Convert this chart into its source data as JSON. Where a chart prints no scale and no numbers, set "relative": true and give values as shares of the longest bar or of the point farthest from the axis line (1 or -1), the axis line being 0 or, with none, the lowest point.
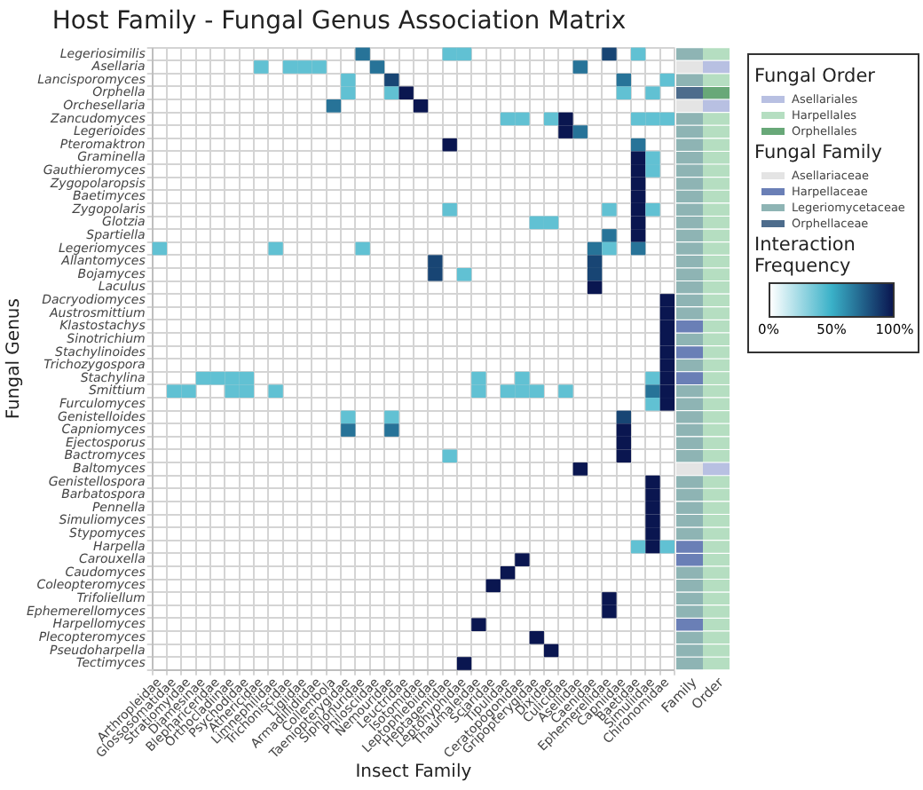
{
  "chart_data": [
    {
      "type": "heatmap",
      "title": "Host Family - Fungal Genus Association Matrix",
      "xlabel": "Insect Family",
      "ylabel": "Fungal Genus",
      "clabel": "Interaction Frequency",
      "grid": true,
      "categories": [
        "Arthropleidae",
        "Glossosomatidae",
        "Stratiomyidae",
        "Diamesinae",
        "Blephariceridae",
        "Orthocladiinae",
        "Psychodidae",
        "Athericidae",
        "Limnephilidae",
        "Trichoniscidae",
        "Ligiidae",
        "Armadillidiidae",
        "Collembola",
        "Taeniopterygidae",
        "Siphlonuridae",
        "Philosciidae",
        "Nemouridae",
        "Leuctridae",
        "Isotomidae",
        "Leptophlebiidae",
        "Heptageniidae",
        "Leptohyphidae",
        "Thaumaleidae",
        "Sciaridae",
        "Tipulidae",
        "Ceratopogonidae",
        "Gripopterygidae",
        "Dixidae",
        "Culicidae",
        "Asellidae",
        "Caenidae",
        "Ephemerellidae",
        "Capniidae",
        "Baetidae",
        "Simuliidae",
        "Chironomidae"
      ],
      "y_categories": [
        "Legeriosimilis",
        "Asellaria",
        "Lancisporomyces",
        "Orphella",
        "Orchesellaria",
        "Zancudomyces",
        "Legerioides",
        "Pteromaktron",
        "Graminella",
        "Gauthieromyces",
        "Zygopolaropsis",
        "Baetimyces",
        "Zygopolaris",
        "Glotzia",
        "Spartiella",
        "Legeriomyces",
        "Allantomyces",
        "Bojamyces",
        "Laculus",
        "Dacryodiomyces",
        "Austrosmittium",
        "Klastostachys",
        "Sinotrichium",
        "Stachylinoides",
        "Trichozygospora",
        "Stachylina",
        "Smittium",
        "Furculomyces",
        "Genistelloides",
        "Capniomyces",
        "Ejectosporus",
        "Bactromyces",
        "Baltomyces",
        "Genistellospora",
        "Barbatospora",
        "Pennella",
        "Simuliomyces",
        "Stypomyces",
        "Harpella",
        "Carouxella",
        "Caudomyces",
        "Coleopteromyces",
        "Trifoliellum",
        "Ephemerellomyces",
        "Harpellomyces",
        "Plecopteromyces",
        "Pseudoharpella",
        "Tectimyces"
      ],
      "cells": [
        [
          null,
          null,
          null,
          null,
          null,
          null,
          null,
          null,
          null,
          null,
          null,
          null,
          null,
          null,
          70,
          null,
          null,
          null,
          null,
          null,
          40,
          40,
          null,
          null,
          null,
          null,
          null,
          null,
          null,
          null,
          null,
          85,
          null,
          40,
          null,
          null
        ],
        [
          null,
          null,
          null,
          null,
          null,
          null,
          null,
          40,
          null,
          40,
          40,
          40,
          null,
          null,
          null,
          70,
          null,
          null,
          null,
          null,
          null,
          null,
          null,
          null,
          null,
          null,
          null,
          null,
          null,
          70,
          null,
          null,
          null,
          null,
          null,
          null
        ],
        [
          null,
          null,
          null,
          null,
          null,
          null,
          null,
          null,
          null,
          null,
          null,
          null,
          null,
          40,
          null,
          null,
          85,
          null,
          null,
          null,
          null,
          null,
          null,
          null,
          null,
          null,
          null,
          null,
          null,
          null,
          null,
          null,
          70,
          null,
          null,
          40
        ],
        [
          null,
          null,
          null,
          null,
          null,
          null,
          null,
          null,
          null,
          null,
          null,
          null,
          null,
          40,
          null,
          null,
          40,
          100,
          null,
          null,
          null,
          null,
          null,
          null,
          null,
          null,
          null,
          null,
          null,
          null,
          null,
          null,
          40,
          null,
          40,
          null
        ],
        [
          null,
          null,
          null,
          null,
          null,
          null,
          null,
          null,
          null,
          null,
          null,
          null,
          70,
          null,
          null,
          null,
          null,
          null,
          100,
          null,
          null,
          null,
          null,
          null,
          null,
          null,
          null,
          null,
          null,
          null,
          null,
          null,
          null,
          null,
          null,
          null
        ],
        [
          null,
          null,
          null,
          null,
          null,
          null,
          null,
          null,
          null,
          null,
          null,
          null,
          null,
          null,
          null,
          null,
          null,
          null,
          null,
          null,
          null,
          null,
          null,
          null,
          40,
          40,
          null,
          40,
          100,
          null,
          null,
          null,
          null,
          40,
          40,
          40
        ],
        [
          null,
          null,
          null,
          null,
          null,
          null,
          null,
          null,
          null,
          null,
          null,
          null,
          null,
          null,
          null,
          null,
          null,
          null,
          null,
          null,
          null,
          null,
          null,
          null,
          null,
          null,
          null,
          null,
          100,
          70,
          null,
          null,
          null,
          null,
          null,
          null
        ],
        [
          null,
          null,
          null,
          null,
          null,
          null,
          null,
          null,
          null,
          null,
          null,
          null,
          null,
          null,
          null,
          null,
          null,
          null,
          null,
          null,
          100,
          null,
          null,
          null,
          null,
          null,
          null,
          null,
          null,
          null,
          null,
          null,
          null,
          70,
          null,
          null
        ],
        [
          null,
          null,
          null,
          null,
          null,
          null,
          null,
          null,
          null,
          null,
          null,
          null,
          null,
          null,
          null,
          null,
          null,
          null,
          null,
          null,
          null,
          null,
          null,
          null,
          null,
          null,
          null,
          null,
          null,
          null,
          null,
          null,
          null,
          100,
          40,
          null
        ],
        [
          null,
          null,
          null,
          null,
          null,
          null,
          null,
          null,
          null,
          null,
          null,
          null,
          null,
          null,
          null,
          null,
          null,
          null,
          null,
          null,
          null,
          null,
          null,
          null,
          null,
          null,
          null,
          null,
          null,
          null,
          null,
          null,
          null,
          100,
          40,
          null
        ],
        [
          null,
          null,
          null,
          null,
          null,
          null,
          null,
          null,
          null,
          null,
          null,
          null,
          null,
          null,
          null,
          null,
          null,
          null,
          null,
          null,
          null,
          null,
          null,
          null,
          null,
          null,
          null,
          null,
          null,
          null,
          null,
          null,
          null,
          100,
          null,
          null
        ],
        [
          null,
          null,
          null,
          null,
          null,
          null,
          null,
          null,
          null,
          null,
          null,
          null,
          null,
          null,
          null,
          null,
          null,
          null,
          null,
          null,
          null,
          null,
          null,
          null,
          null,
          null,
          null,
          null,
          null,
          null,
          null,
          null,
          null,
          100,
          null,
          null
        ],
        [
          null,
          null,
          null,
          null,
          null,
          null,
          null,
          null,
          null,
          null,
          null,
          null,
          null,
          null,
          null,
          null,
          null,
          null,
          null,
          null,
          40,
          null,
          null,
          null,
          null,
          null,
          null,
          null,
          null,
          null,
          null,
          40,
          null,
          100,
          40,
          null
        ],
        [
          null,
          null,
          null,
          null,
          null,
          null,
          null,
          null,
          null,
          null,
          null,
          null,
          null,
          null,
          null,
          null,
          null,
          null,
          null,
          null,
          null,
          null,
          null,
          null,
          null,
          null,
          40,
          40,
          null,
          null,
          null,
          null,
          null,
          100,
          null,
          null
        ],
        [
          null,
          null,
          null,
          null,
          null,
          null,
          null,
          null,
          null,
          null,
          null,
          null,
          null,
          null,
          null,
          null,
          null,
          null,
          null,
          null,
          null,
          null,
          null,
          null,
          null,
          null,
          null,
          null,
          null,
          null,
          null,
          70,
          null,
          100,
          null,
          null
        ],
        [
          40,
          null,
          null,
          null,
          null,
          null,
          null,
          null,
          40,
          null,
          null,
          null,
          null,
          null,
          40,
          null,
          null,
          null,
          null,
          null,
          null,
          null,
          null,
          null,
          null,
          null,
          null,
          null,
          null,
          null,
          70,
          40,
          null,
          70,
          null,
          null
        ],
        [
          null,
          null,
          null,
          null,
          null,
          null,
          null,
          null,
          null,
          null,
          null,
          null,
          null,
          null,
          null,
          null,
          null,
          null,
          null,
          85,
          null,
          null,
          null,
          null,
          null,
          null,
          null,
          null,
          null,
          null,
          85,
          null,
          null,
          null,
          null,
          null
        ],
        [
          null,
          null,
          null,
          null,
          null,
          null,
          null,
          null,
          null,
          null,
          null,
          null,
          null,
          null,
          null,
          null,
          null,
          null,
          null,
          85,
          null,
          40,
          null,
          null,
          null,
          null,
          null,
          null,
          null,
          null,
          85,
          null,
          null,
          null,
          null,
          null
        ],
        [
          null,
          null,
          null,
          null,
          null,
          null,
          null,
          null,
          null,
          null,
          null,
          null,
          null,
          null,
          null,
          null,
          null,
          null,
          null,
          null,
          null,
          null,
          null,
          null,
          null,
          null,
          null,
          null,
          null,
          null,
          100,
          null,
          null,
          null,
          null,
          null
        ],
        [
          null,
          null,
          null,
          null,
          null,
          null,
          null,
          null,
          null,
          null,
          null,
          null,
          null,
          null,
          null,
          null,
          null,
          null,
          null,
          null,
          null,
          null,
          null,
          null,
          null,
          null,
          null,
          null,
          null,
          null,
          null,
          null,
          null,
          null,
          null,
          100
        ],
        [
          null,
          null,
          null,
          null,
          null,
          null,
          null,
          null,
          null,
          null,
          null,
          null,
          null,
          null,
          null,
          null,
          null,
          null,
          null,
          null,
          null,
          null,
          null,
          null,
          null,
          null,
          null,
          null,
          null,
          null,
          null,
          null,
          null,
          null,
          null,
          100
        ],
        [
          null,
          null,
          null,
          null,
          null,
          null,
          null,
          null,
          null,
          null,
          null,
          null,
          null,
          null,
          null,
          null,
          null,
          null,
          null,
          null,
          null,
          null,
          null,
          null,
          null,
          null,
          null,
          null,
          null,
          null,
          null,
          null,
          null,
          null,
          null,
          100
        ],
        [
          null,
          null,
          null,
          null,
          null,
          null,
          null,
          null,
          null,
          null,
          null,
          null,
          null,
          null,
          null,
          null,
          null,
          null,
          null,
          null,
          null,
          null,
          null,
          null,
          null,
          null,
          null,
          null,
          null,
          null,
          null,
          null,
          null,
          null,
          null,
          100
        ],
        [
          null,
          null,
          null,
          null,
          null,
          null,
          null,
          null,
          null,
          null,
          null,
          null,
          null,
          null,
          null,
          null,
          null,
          null,
          null,
          null,
          null,
          null,
          null,
          null,
          null,
          null,
          null,
          null,
          null,
          null,
          null,
          null,
          null,
          null,
          null,
          100
        ],
        [
          null,
          null,
          null,
          null,
          null,
          null,
          null,
          null,
          null,
          null,
          null,
          null,
          null,
          null,
          null,
          null,
          null,
          null,
          null,
          null,
          null,
          null,
          null,
          null,
          null,
          null,
          null,
          null,
          null,
          null,
          null,
          null,
          null,
          null,
          null,
          100
        ],
        [
          null,
          null,
          null,
          40,
          40,
          40,
          40,
          null,
          null,
          null,
          null,
          null,
          null,
          null,
          null,
          null,
          null,
          null,
          null,
          null,
          null,
          null,
          40,
          null,
          null,
          40,
          null,
          null,
          null,
          null,
          null,
          null,
          null,
          null,
          40,
          100
        ],
        [
          null,
          40,
          40,
          null,
          null,
          40,
          40,
          null,
          40,
          null,
          null,
          null,
          null,
          null,
          null,
          null,
          null,
          null,
          null,
          null,
          null,
          null,
          40,
          null,
          40,
          40,
          40,
          null,
          40,
          null,
          null,
          null,
          null,
          null,
          70,
          100
        ],
        [
          null,
          null,
          null,
          null,
          null,
          null,
          null,
          null,
          null,
          null,
          null,
          null,
          null,
          null,
          null,
          null,
          null,
          null,
          null,
          null,
          null,
          null,
          null,
          null,
          null,
          null,
          null,
          null,
          null,
          null,
          null,
          null,
          null,
          null,
          40,
          100
        ],
        [
          null,
          null,
          null,
          null,
          null,
          null,
          null,
          null,
          null,
          null,
          null,
          null,
          null,
          40,
          null,
          null,
          40,
          null,
          null,
          null,
          null,
          null,
          null,
          null,
          null,
          null,
          null,
          null,
          null,
          null,
          null,
          null,
          85,
          null,
          null,
          null
        ],
        [
          null,
          null,
          null,
          null,
          null,
          null,
          null,
          null,
          null,
          null,
          null,
          null,
          null,
          70,
          null,
          null,
          70,
          null,
          null,
          null,
          null,
          null,
          null,
          null,
          null,
          null,
          null,
          null,
          null,
          null,
          null,
          null,
          100,
          null,
          null,
          null
        ],
        [
          null,
          null,
          null,
          null,
          null,
          null,
          null,
          null,
          null,
          null,
          null,
          null,
          null,
          null,
          null,
          null,
          null,
          null,
          null,
          null,
          null,
          null,
          null,
          null,
          null,
          null,
          null,
          null,
          null,
          null,
          null,
          null,
          100,
          null,
          null,
          null
        ],
        [
          null,
          null,
          null,
          null,
          null,
          null,
          null,
          null,
          null,
          null,
          null,
          null,
          null,
          null,
          null,
          null,
          null,
          null,
          null,
          null,
          40,
          null,
          null,
          null,
          null,
          null,
          null,
          null,
          null,
          null,
          null,
          null,
          100,
          null,
          null,
          null
        ],
        [
          null,
          null,
          null,
          null,
          null,
          null,
          null,
          null,
          null,
          null,
          null,
          null,
          null,
          null,
          null,
          null,
          null,
          null,
          null,
          null,
          null,
          null,
          null,
          null,
          null,
          null,
          null,
          null,
          null,
          100,
          null,
          null,
          null,
          null,
          null,
          null
        ],
        [
          null,
          null,
          null,
          null,
          null,
          null,
          null,
          null,
          null,
          null,
          null,
          null,
          null,
          null,
          null,
          null,
          null,
          null,
          null,
          null,
          null,
          null,
          null,
          null,
          null,
          null,
          null,
          null,
          null,
          null,
          null,
          null,
          null,
          null,
          100,
          null
        ],
        [
          null,
          null,
          null,
          null,
          null,
          null,
          null,
          null,
          null,
          null,
          null,
          null,
          null,
          null,
          null,
          null,
          null,
          null,
          null,
          null,
          null,
          null,
          null,
          null,
          null,
          null,
          null,
          null,
          null,
          null,
          null,
          null,
          null,
          null,
          100,
          null
        ],
        [
          null,
          null,
          null,
          null,
          null,
          null,
          null,
          null,
          null,
          null,
          null,
          null,
          null,
          null,
          null,
          null,
          null,
          null,
          null,
          null,
          null,
          null,
          null,
          null,
          null,
          null,
          null,
          null,
          null,
          null,
          null,
          null,
          null,
          null,
          100,
          null
        ],
        [
          null,
          null,
          null,
          null,
          null,
          null,
          null,
          null,
          null,
          null,
          null,
          null,
          null,
          null,
          null,
          null,
          null,
          null,
          null,
          null,
          null,
          null,
          null,
          null,
          null,
          null,
          null,
          null,
          null,
          null,
          null,
          null,
          null,
          null,
          100,
          null
        ],
        [
          null,
          null,
          null,
          null,
          null,
          null,
          null,
          null,
          null,
          null,
          null,
          null,
          null,
          null,
          null,
          null,
          null,
          null,
          null,
          null,
          null,
          null,
          null,
          null,
          null,
          null,
          null,
          null,
          null,
          null,
          null,
          null,
          null,
          null,
          100,
          null
        ],
        [
          null,
          null,
          null,
          null,
          null,
          null,
          null,
          null,
          null,
          null,
          null,
          null,
          null,
          null,
          null,
          null,
          null,
          null,
          null,
          null,
          null,
          null,
          null,
          null,
          null,
          null,
          null,
          null,
          null,
          null,
          null,
          null,
          null,
          40,
          100,
          40
        ],
        [
          null,
          null,
          null,
          null,
          null,
          null,
          null,
          null,
          null,
          null,
          null,
          null,
          null,
          null,
          null,
          null,
          null,
          null,
          null,
          null,
          null,
          null,
          null,
          null,
          null,
          100,
          null,
          null,
          null,
          null,
          null,
          null,
          null,
          null,
          null,
          null
        ],
        [
          null,
          null,
          null,
          null,
          null,
          null,
          null,
          null,
          null,
          null,
          null,
          null,
          null,
          null,
          null,
          null,
          null,
          null,
          null,
          null,
          null,
          null,
          null,
          null,
          100,
          null,
          null,
          null,
          null,
          null,
          null,
          null,
          null,
          null,
          null,
          null
        ],
        [
          null,
          null,
          null,
          null,
          null,
          null,
          null,
          null,
          null,
          null,
          null,
          null,
          null,
          null,
          null,
          null,
          null,
          null,
          null,
          null,
          null,
          null,
          null,
          100,
          null,
          null,
          null,
          null,
          null,
          null,
          null,
          null,
          null,
          null,
          null,
          null
        ],
        [
          null,
          null,
          null,
          null,
          null,
          null,
          null,
          null,
          null,
          null,
          null,
          null,
          null,
          null,
          null,
          null,
          null,
          null,
          null,
          null,
          null,
          null,
          null,
          null,
          null,
          null,
          null,
          null,
          null,
          null,
          null,
          100,
          null,
          null,
          null,
          null
        ],
        [
          null,
          null,
          null,
          null,
          null,
          null,
          null,
          null,
          null,
          null,
          null,
          null,
          null,
          null,
          null,
          null,
          null,
          null,
          null,
          null,
          null,
          null,
          null,
          null,
          null,
          null,
          null,
          null,
          null,
          null,
          null,
          100,
          null,
          null,
          null,
          null
        ],
        [
          null,
          null,
          null,
          null,
          null,
          null,
          null,
          null,
          null,
          null,
          null,
          null,
          null,
          null,
          null,
          null,
          null,
          null,
          null,
          null,
          null,
          null,
          100,
          null,
          null,
          null,
          null,
          null,
          null,
          null,
          null,
          null,
          null,
          null,
          null,
          null
        ],
        [
          null,
          null,
          null,
          null,
          null,
          null,
          null,
          null,
          null,
          null,
          null,
          null,
          null,
          null,
          null,
          null,
          null,
          null,
          null,
          null,
          null,
          null,
          null,
          null,
          null,
          null,
          100,
          null,
          null,
          null,
          null,
          null,
          null,
          null,
          null,
          null
        ],
        [
          null,
          null,
          null,
          null,
          null,
          null,
          null,
          null,
          null,
          null,
          null,
          null,
          null,
          null,
          null,
          null,
          null,
          null,
          null,
          null,
          null,
          null,
          null,
          null,
          null,
          null,
          null,
          100,
          null,
          null,
          null,
          null,
          null,
          null,
          null,
          null
        ],
        [
          null,
          null,
          null,
          null,
          null,
          null,
          null,
          null,
          null,
          null,
          null,
          null,
          null,
          null,
          null,
          null,
          null,
          null,
          null,
          null,
          null,
          100,
          null,
          null,
          null,
          null,
          null,
          null,
          null,
          null,
          null,
          null,
          null,
          null,
          null,
          null
        ]
      ],
      "clim": [
        0,
        100
      ],
      "cticks": [
        {
          "value": 0,
          "label": "0%"
        },
        {
          "value": 50,
          "label": "50%"
        },
        {
          "value": 100,
          "label": "100%"
        }
      ]
    },
    {
      "type": "bar",
      "orientation": "horizontal",
      "stacked": true,
      "relative": true,
      "tick_labels": false,
      "xlabel": "Family",
      "legend_title": "Fungal Family",
      "legend": "right",
      "categories": [
        null,
        null,
        null,
        null,
        null,
        null,
        null,
        null,
        null,
        null,
        null,
        null,
        null,
        null,
        null,
        null,
        null,
        null,
        null,
        null,
        null,
        null,
        null,
        null,
        null,
        null,
        null,
        null,
        null,
        null,
        null,
        null,
        null,
        null,
        null,
        null,
        null,
        null,
        null,
        null,
        null,
        null,
        null,
        null,
        null,
        null,
        null,
        null
      ],
      "series": [
        {
          "name": "Asellariaceae",
          "color": "#e4e4e4",
          "values": [
            null,
            1,
            null,
            null,
            1,
            null,
            null,
            null,
            null,
            null,
            null,
            null,
            null,
            null,
            null,
            null,
            null,
            null,
            null,
            null,
            null,
            null,
            null,
            null,
            null,
            null,
            null,
            null,
            null,
            null,
            null,
            null,
            1,
            null,
            null,
            null,
            null,
            null,
            null,
            null,
            null,
            null,
            null,
            null,
            null,
            null,
            null,
            null
          ]
        },
        {
          "name": "Harpellaceae",
          "color": "#6a7fb6",
          "values": [
            null,
            null,
            null,
            null,
            null,
            null,
            null,
            null,
            null,
            null,
            null,
            null,
            null,
            null,
            null,
            null,
            null,
            null,
            null,
            null,
            null,
            1,
            null,
            1,
            null,
            1,
            null,
            null,
            null,
            null,
            null,
            null,
            null,
            null,
            null,
            null,
            null,
            null,
            1,
            1,
            null,
            null,
            null,
            null,
            1,
            null,
            null,
            null
          ]
        },
        {
          "name": "Legeriomycetaceae",
          "color": "#8eb4b4",
          "values": [
            1,
            null,
            1,
            null,
            null,
            1,
            1,
            1,
            1,
            1,
            1,
            1,
            1,
            1,
            1,
            1,
            1,
            1,
            1,
            1,
            1,
            null,
            1,
            null,
            1,
            null,
            1,
            1,
            1,
            1,
            1,
            1,
            null,
            1,
            1,
            1,
            1,
            1,
            null,
            null,
            1,
            1,
            1,
            1,
            null,
            1,
            1,
            1
          ]
        },
        {
          "name": "Orphellaceae",
          "color": "#4d6c8c",
          "values": [
            null,
            null,
            null,
            1,
            null,
            null,
            null,
            null,
            null,
            null,
            null,
            null,
            null,
            null,
            null,
            null,
            null,
            null,
            null,
            null,
            null,
            null,
            null,
            null,
            null,
            null,
            null,
            null,
            null,
            null,
            null,
            null,
            null,
            null,
            null,
            null,
            null,
            null,
            null,
            null,
            null,
            null,
            null,
            null,
            null,
            null,
            null,
            null
          ]
        }
      ]
    },
    {
      "type": "bar",
      "orientation": "horizontal",
      "stacked": true,
      "relative": true,
      "tick_labels": false,
      "xlabel": "Order",
      "legend_title": "Fungal Order",
      "legend": "right",
      "categories": [
        null,
        null,
        null,
        null,
        null,
        null,
        null,
        null,
        null,
        null,
        null,
        null,
        null,
        null,
        null,
        null,
        null,
        null,
        null,
        null,
        null,
        null,
        null,
        null,
        null,
        null,
        null,
        null,
        null,
        null,
        null,
        null,
        null,
        null,
        null,
        null,
        null,
        null,
        null,
        null,
        null,
        null,
        null,
        null,
        null,
        null,
        null,
        null
      ],
      "series": [
        {
          "name": "Asellariales",
          "color": "#b8c0e2",
          "values": [
            null,
            1,
            null,
            null,
            1,
            null,
            null,
            null,
            null,
            null,
            null,
            null,
            null,
            null,
            null,
            null,
            null,
            null,
            null,
            null,
            null,
            null,
            null,
            null,
            null,
            null,
            null,
            null,
            null,
            null,
            null,
            null,
            1,
            null,
            null,
            null,
            null,
            null,
            null,
            null,
            null,
            null,
            null,
            null,
            null,
            null,
            null,
            null
          ]
        },
        {
          "name": "Harpellales",
          "color": "#b5dec1",
          "values": [
            1,
            null,
            1,
            null,
            null,
            1,
            1,
            1,
            1,
            1,
            1,
            1,
            1,
            1,
            1,
            1,
            1,
            1,
            1,
            1,
            1,
            1,
            1,
            1,
            1,
            1,
            1,
            1,
            1,
            1,
            1,
            1,
            null,
            1,
            1,
            1,
            1,
            1,
            1,
            1,
            1,
            1,
            1,
            1,
            1,
            1,
            1,
            1
          ]
        },
        {
          "name": "Orphellales",
          "color": "#68a878",
          "values": [
            null,
            null,
            null,
            1,
            null,
            null,
            null,
            null,
            null,
            null,
            null,
            null,
            null,
            null,
            null,
            null,
            null,
            null,
            null,
            null,
            null,
            null,
            null,
            null,
            null,
            null,
            null,
            null,
            null,
            null,
            null,
            null,
            null,
            null,
            null,
            null,
            null,
            null,
            null,
            null,
            null,
            null,
            null,
            null,
            null,
            null,
            null,
            null
          ]
        }
      ]
    }
  ]
}
